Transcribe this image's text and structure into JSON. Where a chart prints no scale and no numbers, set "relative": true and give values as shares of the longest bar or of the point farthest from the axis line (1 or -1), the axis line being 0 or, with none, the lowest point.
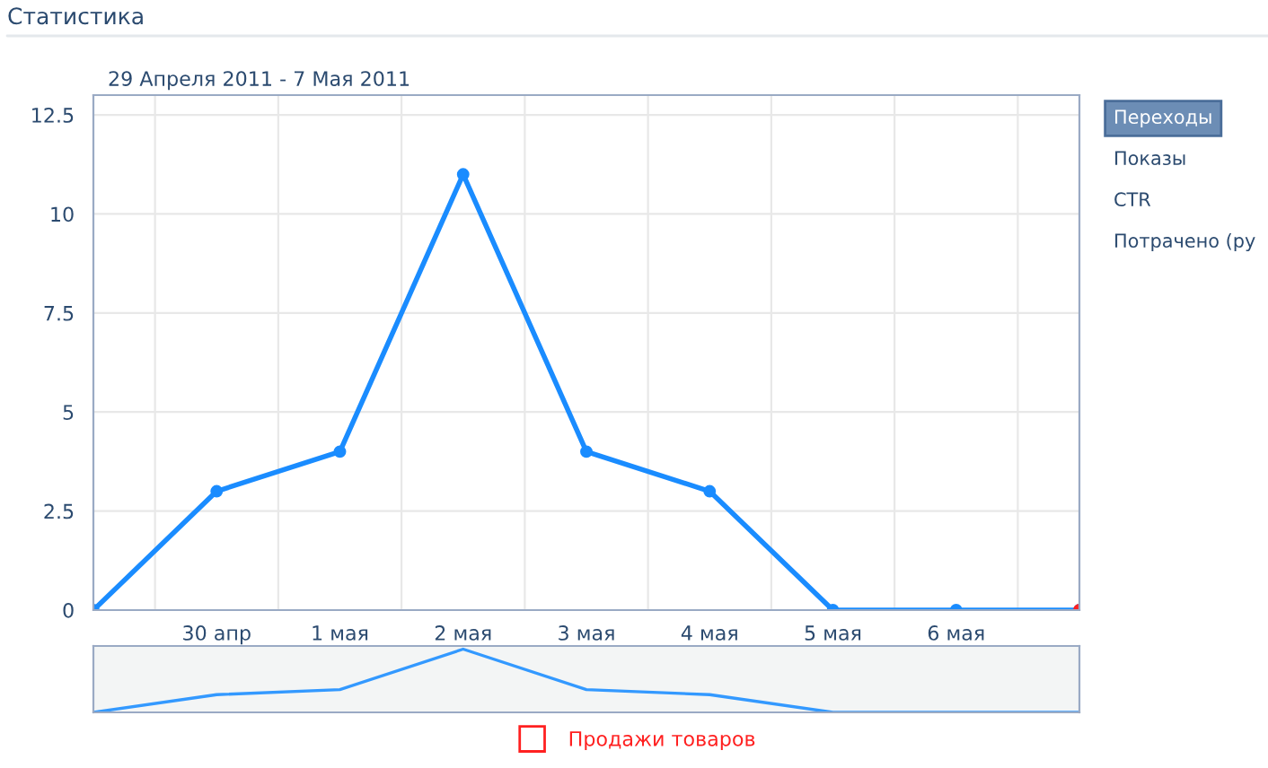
{
  "chart_data": [
    {
      "type": "line",
      "title": "Статистика",
      "subtitle": "29 Апреля 2011 - 7 Мая 2011",
      "categories": [
        null,
        "30 апр",
        "1 мая",
        "2 мая",
        "3 мая",
        "4 мая",
        "5 мая",
        "6 мая",
        null
      ],
      "series": [
        {
          "color": "#1a8cff",
          "values": [
            0,
            3,
            4,
            11,
            4,
            3,
            0,
            0,
            0
          ]
        },
        {
          "name": "Продажи товаров",
          "color": "#ff2020",
          "values": [
            null,
            null,
            null,
            null,
            null,
            null,
            null,
            null,
            0
          ]
        }
      ],
      "ylim": [
        0,
        13
      ],
      "yticks": [
        0,
        2.5,
        5,
        7.5,
        10,
        12.5
      ],
      "grid": true,
      "marker": "circle",
      "line_style": "solid",
      "legend": "bottom",
      "annotations": [
        "Переходы",
        "Показы",
        "CTR",
        "Потрачено (ру"
      ]
    },
    {
      "type": "line",
      "relative": true,
      "categories": [
        null,
        null,
        null,
        null,
        null,
        null,
        null,
        null,
        null
      ],
      "series": [
        {
          "color": "#3399ff",
          "values": [
            0,
            0.28,
            0.36,
            1,
            0.36,
            0.28,
            0,
            0,
            0
          ]
        }
      ]
    }
  ]
}
